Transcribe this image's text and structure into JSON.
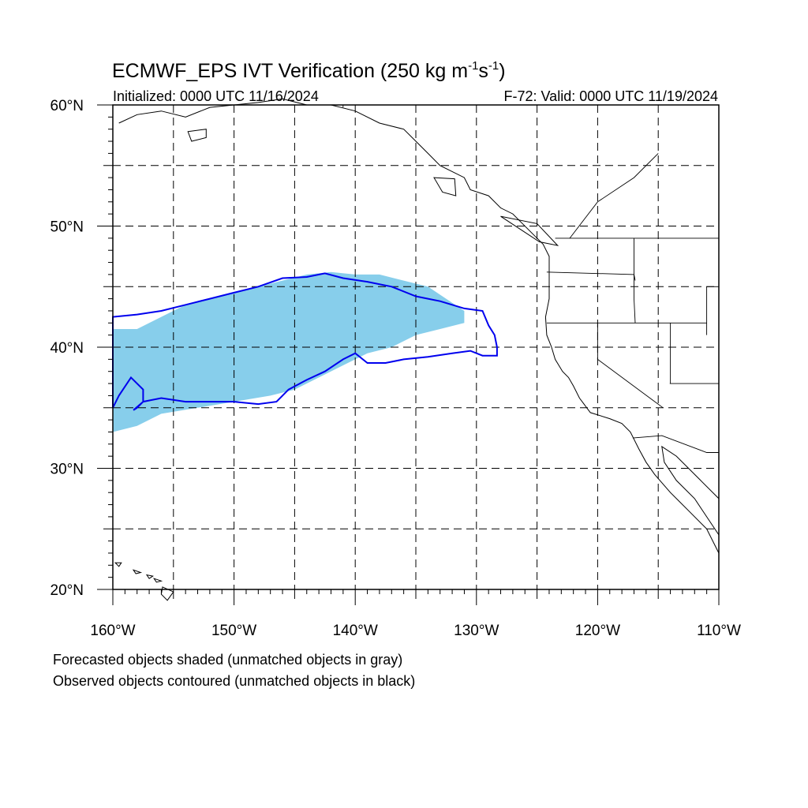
{
  "title": {
    "prefix": "ECMWF_EPS IVT Verification (250 kg m",
    "sup1": "-1",
    "mid": "s",
    "sup2": "-1",
    "suffix": ")"
  },
  "initialized": "Initialized: 0000 UTC 11/16/2024",
  "valid": "F-72: Valid: 0000 UTC 11/19/2024",
  "lat_labels": [
    {
      "label": "60°N",
      "value": 60
    },
    {
      "label": "50°N",
      "value": 50
    },
    {
      "label": "40°N",
      "value": 40
    },
    {
      "label": "30°N",
      "value": 30
    },
    {
      "label": "20°N",
      "value": 20
    }
  ],
  "lon_labels": [
    {
      "label": "160°W",
      "value": -160
    },
    {
      "label": "150°W",
      "value": -150
    },
    {
      "label": "140°W",
      "value": -140
    },
    {
      "label": "130°W",
      "value": -130
    },
    {
      "label": "120°W",
      "value": -120
    },
    {
      "label": "110°W",
      "value": -110
    }
  ],
  "notes": {
    "forecast": "Forecasted objects shaded (unmatched objects in gray)",
    "observed": "Observed objects contoured (unmatched objects in black)"
  },
  "colors": {
    "forecast_fill": "#87ceeb",
    "observed_contour": "#0000ee",
    "coastline": "#000000",
    "grid": "#000000"
  },
  "map_extent": {
    "lon": [
      -160,
      -110
    ],
    "lat": [
      20,
      60
    ]
  },
  "forecast_object": [
    [
      -160,
      41.5
    ],
    [
      -158,
      41.5
    ],
    [
      -156,
      42.5
    ],
    [
      -154,
      43.5
    ],
    [
      -152,
      44
    ],
    [
      -150,
      44.5
    ],
    [
      -148,
      45
    ],
    [
      -146,
      45.5
    ],
    [
      -144,
      46
    ],
    [
      -142,
      46.2
    ],
    [
      -140,
      46
    ],
    [
      -138,
      46
    ],
    [
      -136,
      45.5
    ],
    [
      -134,
      45
    ],
    [
      -132.5,
      44
    ],
    [
      -131,
      43
    ],
    [
      -131,
      42
    ],
    [
      -133,
      41.5
    ],
    [
      -135,
      41
    ],
    [
      -137,
      40
    ],
    [
      -139,
      39.5
    ],
    [
      -141,
      38.5
    ],
    [
      -143,
      37.5
    ],
    [
      -145,
      36.5
    ],
    [
      -147,
      36
    ],
    [
      -150,
      35.5
    ],
    [
      -153,
      35
    ],
    [
      -156,
      34.5
    ],
    [
      -158,
      33.5
    ],
    [
      -160,
      33
    ]
  ],
  "observed_object": [
    [
      -160,
      42.5
    ],
    [
      -158,
      42.7
    ],
    [
      -156,
      43
    ],
    [
      -154,
      43.5
    ],
    [
      -152,
      44
    ],
    [
      -150,
      44.5
    ],
    [
      -148,
      45
    ],
    [
      -146,
      45.7
    ],
    [
      -144,
      45.8
    ],
    [
      -142.5,
      46.1
    ],
    [
      -141,
      45.7
    ],
    [
      -139,
      45.4
    ],
    [
      -137,
      45
    ],
    [
      -135,
      44.2
    ],
    [
      -133,
      43.8
    ],
    [
      -131,
      43.2
    ],
    [
      -129.5,
      43
    ],
    [
      -129,
      41.8
    ],
    [
      -128.5,
      41
    ],
    [
      -128.3,
      40
    ],
    [
      -128.3,
      39.3
    ],
    [
      -129.5,
      39.3
    ],
    [
      -130.5,
      39.7
    ],
    [
      -132,
      39.5
    ],
    [
      -134,
      39.2
    ],
    [
      -136,
      39
    ],
    [
      -137.5,
      38.7
    ],
    [
      -139,
      38.7
    ],
    [
      -140,
      39.5
    ],
    [
      -141,
      39
    ],
    [
      -142.5,
      38
    ],
    [
      -144,
      37.3
    ],
    [
      -145.5,
      36.5
    ],
    [
      -146.5,
      35.5
    ],
    [
      -148,
      35.3
    ],
    [
      -150,
      35.5
    ],
    [
      -152,
      35.5
    ],
    [
      -154,
      35.5
    ],
    [
      -156,
      35.8
    ],
    [
      -157.5,
      35.5
    ],
    [
      -158,
      35
    ],
    [
      -158.3,
      34.8
    ],
    [
      -157.5,
      35.5
    ],
    [
      -157.5,
      36.5
    ],
    [
      -158,
      37
    ],
    [
      -158.5,
      37.5
    ],
    [
      -159.5,
      36
    ],
    [
      -160,
      35
    ]
  ],
  "coastline": [
    [
      -159.5,
      58.5
    ],
    [
      -158,
      59.2
    ],
    [
      -156,
      59.5
    ],
    [
      -154,
      59
    ],
    [
      -152,
      59.8
    ],
    [
      -150,
      60
    ],
    [
      -148,
      60.2
    ],
    [
      -146,
      60.5
    ],
    [
      -144,
      60
    ],
    [
      -142,
      60
    ],
    [
      -140,
      59.5
    ],
    [
      -138,
      58.5
    ],
    [
      -136,
      58
    ],
    [
      -135,
      57
    ],
    [
      -134,
      56
    ],
    [
      -133,
      55
    ],
    [
      -131,
      54
    ],
    [
      -130.5,
      53
    ],
    [
      -129,
      52.5
    ],
    [
      -128,
      51.5
    ],
    [
      -127,
      51
    ],
    [
      -125.5,
      49.5
    ],
    [
      -124.5,
      48.5
    ],
    [
      -124,
      47.5
    ],
    [
      -124,
      46
    ],
    [
      -124,
      44
    ],
    [
      -124.3,
      42.5
    ],
    [
      -124.2,
      41
    ],
    [
      -123.8,
      40
    ],
    [
      -123.5,
      39
    ],
    [
      -122.9,
      38
    ],
    [
      -122.4,
      37.5
    ],
    [
      -122,
      36.8
    ],
    [
      -121.5,
      35.8
    ],
    [
      -120.6,
      34.6
    ],
    [
      -119,
      34.1
    ],
    [
      -118,
      33.7
    ],
    [
      -117.3,
      33
    ],
    [
      -116.6,
      31.6
    ],
    [
      -116,
      30.5
    ],
    [
      -115.3,
      29.5
    ],
    [
      -114,
      28
    ],
    [
      -112.5,
      26.5
    ],
    [
      -111,
      25
    ],
    [
      -110,
      23
    ]
  ],
  "gulf_coast": [
    [
      -110,
      27.5
    ],
    [
      -111.5,
      29
    ],
    [
      -112.5,
      30
    ],
    [
      -113.5,
      31
    ],
    [
      -114.7,
      31.8
    ],
    [
      -114.5,
      30.5
    ],
    [
      -113.5,
      29
    ],
    [
      -112,
      27.5
    ],
    [
      -111,
      26
    ],
    [
      -110,
      24.5
    ]
  ],
  "borders": [
    [
      [
        -123.5,
        49
      ],
      [
        -110,
        49
      ]
    ],
    [
      [
        -124.2,
        46.2
      ],
      [
        -117,
        46
      ],
      [
        -116.9,
        45.5
      ]
    ],
    [
      [
        -117,
        49
      ],
      [
        -117,
        44
      ],
      [
        -116.9,
        42
      ]
    ],
    [
      [
        -124.2,
        42
      ],
      [
        -111,
        42
      ]
    ],
    [
      [
        -120,
        42
      ],
      [
        -120,
        39
      ],
      [
        -114.6,
        35
      ]
    ],
    [
      [
        -117.1,
        32.5
      ],
      [
        -114.7,
        32.7
      ],
      [
        -111,
        31.3
      ],
      [
        -110,
        31.3
      ]
    ],
    [
      [
        -114,
        42
      ],
      [
        -114,
        37
      ]
    ],
    [
      [
        -114.05,
        37
      ],
      [
        -110,
        37
      ]
    ],
    [
      [
        -111,
        45
      ],
      [
        -110,
        45
      ]
    ],
    [
      [
        -111,
        45
      ],
      [
        -111,
        41
      ]
    ],
    [
      [
        -122.3,
        49
      ],
      [
        -120,
        52
      ],
      [
        -117,
        54
      ],
      [
        -115,
        56
      ]
    ],
    [
      [
        -141,
        60
      ],
      [
        -141,
        59.8
      ]
    ]
  ],
  "islands": [
    [
      [
        -159.8,
        22.2
      ],
      [
        -159.3,
        22.2
      ],
      [
        -159.5,
        21.9
      ],
      [
        -159.8,
        22.2
      ]
    ],
    [
      [
        -158.3,
        21.6
      ],
      [
        -157.7,
        21.4
      ],
      [
        -158.1,
        21.3
      ],
      [
        -158.3,
        21.6
      ]
    ],
    [
      [
        -157.2,
        21.2
      ],
      [
        -156.7,
        21.1
      ],
      [
        -157,
        20.9
      ],
      [
        -157.2,
        21.2
      ]
    ],
    [
      [
        -156.6,
        20.9
      ],
      [
        -156,
        20.7
      ],
      [
        -156.4,
        20.6
      ],
      [
        -156.6,
        20.9
      ]
    ],
    [
      [
        -155.9,
        20.2
      ],
      [
        -155,
        19.8
      ],
      [
        -155.5,
        19.1
      ],
      [
        -156,
        19.6
      ],
      [
        -155.9,
        20.2
      ]
    ],
    [
      [
        -153.8,
        57.8
      ],
      [
        -152.3,
        58
      ],
      [
        -152.3,
        57.3
      ],
      [
        -153.5,
        57
      ],
      [
        -153.8,
        57.8
      ]
    ],
    [
      [
        -133.5,
        54
      ],
      [
        -131.8,
        53.9
      ],
      [
        -131.7,
        52.5
      ],
      [
        -132.8,
        52.8
      ],
      [
        -133.5,
        54
      ]
    ],
    [
      [
        -128,
        50.8
      ],
      [
        -125,
        50.2
      ],
      [
        -123.3,
        48.4
      ],
      [
        -124.8,
        48.7
      ],
      [
        -128,
        50.8
      ]
    ]
  ]
}
